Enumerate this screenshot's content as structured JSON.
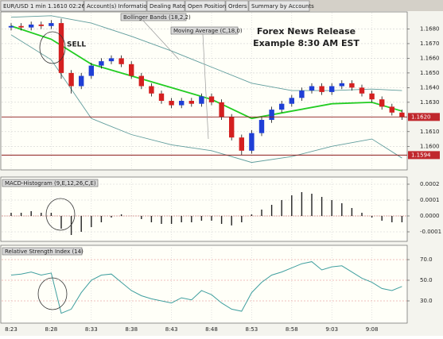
{
  "tabs": [
    "EUR/USD 1 min 1.1610 02:26:00",
    "Account(s) Information",
    "Dealing Rates",
    "Open Positions",
    "Orders",
    "Summary by Accounts"
  ],
  "chart_data": [
    {
      "type": "candlestick",
      "title": "Forex News Release",
      "subtitle": "Example 8:30 AM EST",
      "annotation": "SELL",
      "indicators": [
        "Bollinger Bands (18,2,2)",
        "Moving Average (C,18,0)"
      ],
      "open": [
        1.1681,
        1.1682,
        1.1681,
        1.1683,
        1.1682,
        1.1684,
        1.165,
        1.1641,
        1.1648,
        1.1655,
        1.1658,
        1.166,
        1.1656,
        1.1648,
        1.1641,
        1.1636,
        1.1631,
        1.1628,
        1.1631,
        1.1629,
        1.1634,
        1.163,
        1.162,
        1.1606,
        1.1597,
        1.1609,
        1.1618,
        1.1625,
        1.1629,
        1.1633,
        1.1638,
        1.1641,
        1.1637,
        1.1641,
        1.1643,
        1.164,
        1.1636,
        1.1632,
        1.1627,
        1.1623
      ],
      "high": [
        1.1684,
        1.1684,
        1.1685,
        1.1685,
        1.1686,
        1.1687,
        1.1652,
        1.165,
        1.1657,
        1.166,
        1.1662,
        1.1662,
        1.1658,
        1.165,
        1.1643,
        1.1638,
        1.1633,
        1.1633,
        1.1633,
        1.1636,
        1.1636,
        1.1632,
        1.1622,
        1.1608,
        1.1611,
        1.162,
        1.1627,
        1.1631,
        1.1635,
        1.164,
        1.1643,
        1.1643,
        1.1643,
        1.1645,
        1.1645,
        1.1642,
        1.1638,
        1.1634,
        1.1629,
        1.1625
      ],
      "low": [
        1.1679,
        1.1679,
        1.1679,
        1.168,
        1.168,
        1.1646,
        1.1636,
        1.1639,
        1.1646,
        1.1653,
        1.1656,
        1.1654,
        1.1646,
        1.1639,
        1.1634,
        1.1629,
        1.1626,
        1.1626,
        1.1627,
        1.1627,
        1.1628,
        1.1618,
        1.1604,
        1.1594,
        1.1595,
        1.1607,
        1.1616,
        1.1623,
        1.1627,
        1.1631,
        1.1636,
        1.1635,
        1.1635,
        1.1639,
        1.1638,
        1.1634,
        1.163,
        1.1625,
        1.1621,
        1.1618
      ],
      "close": [
        1.1682,
        1.1681,
        1.1683,
        1.1682,
        1.1684,
        1.165,
        1.1641,
        1.1648,
        1.1655,
        1.1658,
        1.166,
        1.1656,
        1.1648,
        1.1641,
        1.1636,
        1.1631,
        1.1628,
        1.1631,
        1.1629,
        1.1634,
        1.163,
        1.162,
        1.1606,
        1.1597,
        1.1609,
        1.1618,
        1.1625,
        1.1629,
        1.1633,
        1.1638,
        1.1641,
        1.1637,
        1.1641,
        1.1643,
        1.164,
        1.1636,
        1.1632,
        1.1627,
        1.1623,
        1.162
      ],
      "up_color": "#1f3fd6",
      "down_color": "#d42020",
      "bollinger": {
        "color": "#5f9c9c",
        "x": [
          0,
          4,
          8,
          12,
          16,
          20,
          24,
          28,
          32,
          36,
          39
        ],
        "upper": [
          1.1688,
          1.1689,
          1.1684,
          1.1675,
          1.1665,
          1.1654,
          1.1643,
          1.1638,
          1.1638,
          1.1639,
          1.1638
        ],
        "lower": [
          1.1676,
          1.1659,
          1.1619,
          1.1608,
          1.1601,
          1.1597,
          1.1589,
          1.1593,
          1.16,
          1.1605,
          1.1592
        ]
      },
      "moving_average": {
        "color": "#22cc22",
        "x": [
          0,
          4,
          8,
          12,
          16,
          20,
          24,
          28,
          32,
          36,
          39
        ],
        "values": [
          1.1682,
          1.1673,
          1.1656,
          1.1648,
          1.164,
          1.1632,
          1.1619,
          1.1624,
          1.1629,
          1.163,
          1.1624
        ]
      },
      "price_lines": [
        {
          "value": 1.162,
          "label": "1.1620"
        },
        {
          "value": 1.1594,
          "label": "1.1594"
        }
      ],
      "ylim": [
        1.1585,
        1.169
      ],
      "yticks": [
        {
          "value": 1.16,
          "label": "1.1600"
        },
        {
          "value": 1.161,
          "label": "1.1610"
        },
        {
          "value": 1.163,
          "label": "1.1630"
        },
        {
          "value": 1.164,
          "label": "1.1640"
        },
        {
          "value": 1.165,
          "label": "1.1650"
        },
        {
          "value": 1.166,
          "label": "1.1660"
        },
        {
          "value": 1.167,
          "label": "1.1670"
        },
        {
          "value": 1.168,
          "label": "1.1680"
        }
      ],
      "xticks": [
        {
          "value": 0,
          "label": "8:23"
        },
        {
          "value": 4,
          "label": "8:28"
        },
        {
          "value": 8,
          "label": "8:33"
        },
        {
          "value": 12,
          "label": "8:38"
        },
        {
          "value": 16,
          "label": "8:43"
        },
        {
          "value": 20,
          "label": "8:48"
        },
        {
          "value": 24,
          "label": "8:53"
        },
        {
          "value": 28,
          "label": "8:58"
        },
        {
          "value": 32,
          "label": "9:03"
        },
        {
          "value": 36,
          "label": "9:08"
        }
      ]
    },
    {
      "type": "bar",
      "title": "MACD-Histogram (9,E,12,26,C,E)",
      "color": "#222222",
      "values": [
        2e-05,
        2e-05,
        3e-05,
        2e-05,
        2e-05,
        -8e-05,
        -0.00012,
        -0.0001,
        -7e-05,
        -4e-05,
        -1e-05,
        1e-05,
        0,
        -2e-05,
        -4e-05,
        -5e-05,
        -5e-05,
        -4e-05,
        -4e-05,
        -3e-05,
        -3e-05,
        -5e-05,
        -6e-05,
        -4e-05,
        1e-05,
        4e-05,
        7e-05,
        0.0001,
        0.00013,
        0.00015,
        0.00014,
        0.00012,
        0.0001,
        8e-05,
        5e-05,
        2e-05,
        -1e-05,
        -3e-05,
        -4e-05,
        -4e-05
      ],
      "ylim": [
        -0.00015,
        0.00022
      ],
      "yticks": [
        {
          "value": 0.0002,
          "label": "0.0002"
        },
        {
          "value": 0.0001,
          "label": "0.0001"
        },
        {
          "value": 0,
          "label": "0.0000"
        },
        {
          "value": -0.0001,
          "label": "-0.0001"
        }
      ]
    },
    {
      "type": "line",
      "title": "Relative Strength Index (14)",
      "color": "#3f9f9f",
      "values": [
        55,
        56,
        58,
        55,
        57,
        18,
        22,
        38,
        50,
        55,
        56,
        48,
        40,
        35,
        32,
        30,
        28,
        33,
        31,
        40,
        36,
        28,
        22,
        20,
        38,
        48,
        55,
        58,
        62,
        66,
        68,
        60,
        63,
        64,
        58,
        52,
        48,
        42,
        40,
        44
      ],
      "ylim": [
        10,
        80
      ],
      "yticks": [
        {
          "value": 70,
          "label": "70.0"
        },
        {
          "value": 50,
          "label": "50.0"
        },
        {
          "value": 30,
          "label": "30.0"
        }
      ]
    }
  ]
}
